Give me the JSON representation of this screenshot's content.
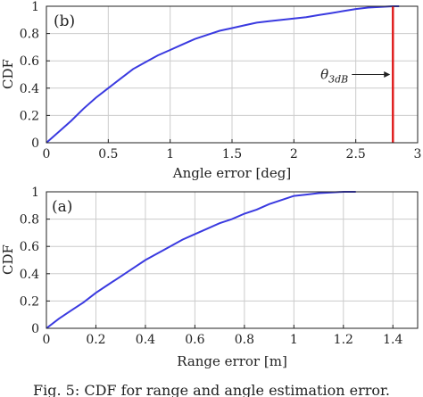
{
  "figure_caption": "Fig. 5: CDF for range and angle estimation error.",
  "colors": {
    "curve": "#3a3ae0",
    "threshold": "#e02020",
    "grid": "#cccccc",
    "axis": "#222222",
    "text": "#222222"
  },
  "chart_data": [
    {
      "type": "line",
      "panel_label": "(b)",
      "xlabel": "Angle error [deg]",
      "ylabel": "CDF",
      "xlim": [
        0,
        3
      ],
      "ylim": [
        0,
        1
      ],
      "xticks": [
        "0",
        "0.5",
        "1",
        "1.5",
        "2",
        "2.5",
        "3"
      ],
      "yticks": [
        "0",
        "0.2",
        "0.4",
        "0.6",
        "0.8",
        "1"
      ],
      "grid": true,
      "series": [
        {
          "x": [
            0,
            0.1,
            0.2,
            0.3,
            0.4,
            0.5,
            0.6,
            0.7,
            0.8,
            0.9,
            1.0,
            1.1,
            1.2,
            1.3,
            1.4,
            1.5,
            1.6,
            1.7,
            1.8,
            1.9,
            2.0,
            2.1,
            2.2,
            2.3,
            2.4,
            2.5,
            2.6,
            2.7,
            2.8,
            2.85
          ],
          "y": [
            0,
            0.08,
            0.16,
            0.25,
            0.33,
            0.4,
            0.47,
            0.54,
            0.59,
            0.64,
            0.68,
            0.72,
            0.76,
            0.79,
            0.82,
            0.84,
            0.86,
            0.88,
            0.89,
            0.9,
            0.91,
            0.92,
            0.935,
            0.95,
            0.965,
            0.98,
            0.99,
            0.995,
            1.0,
            1.0
          ]
        }
      ],
      "threshold": {
        "x": 2.8,
        "label": "θ3dB"
      }
    },
    {
      "type": "line",
      "panel_label": "(a)",
      "xlabel": "Range error [m]",
      "ylabel": "CDF",
      "xlim": [
        0,
        1.5
      ],
      "ylim": [
        0,
        1
      ],
      "xticks": [
        "0",
        "0.2",
        "0.4",
        "0.6",
        "0.8",
        "1",
        "1.2",
        "1.4"
      ],
      "yticks": [
        "0",
        "0.2",
        "0.4",
        "0.6",
        "0.8",
        "1"
      ],
      "grid": true,
      "series": [
        {
          "x": [
            0,
            0.05,
            0.1,
            0.15,
            0.2,
            0.25,
            0.3,
            0.35,
            0.4,
            0.45,
            0.5,
            0.55,
            0.6,
            0.65,
            0.7,
            0.75,
            0.8,
            0.85,
            0.9,
            0.95,
            1.0,
            1.05,
            1.1,
            1.15,
            1.2,
            1.25
          ],
          "y": [
            0,
            0.07,
            0.13,
            0.19,
            0.26,
            0.32,
            0.38,
            0.44,
            0.5,
            0.55,
            0.6,
            0.65,
            0.69,
            0.73,
            0.77,
            0.8,
            0.84,
            0.87,
            0.91,
            0.94,
            0.97,
            0.98,
            0.99,
            0.995,
            1.0,
            1.0
          ]
        }
      ]
    }
  ]
}
